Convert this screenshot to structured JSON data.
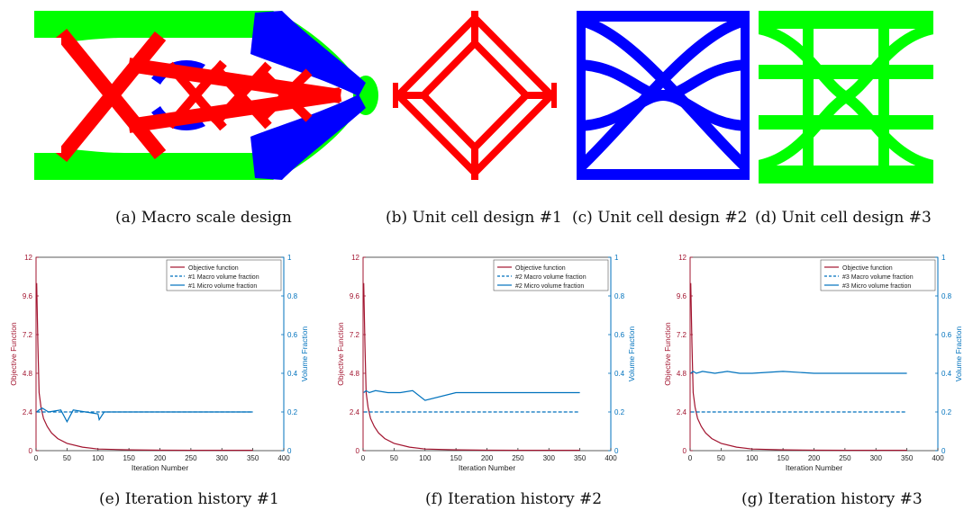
{
  "figure": {
    "captions": {
      "a": "(a) Macro scale design",
      "b": "(b) Unit cell design #1",
      "c": "(c) Unit cell design #2",
      "d": "(d) Unit cell design #3",
      "e": "(e) Iteration history #1",
      "f": "(f) Iteration history #2",
      "g": "(g) Iteration history #3"
    },
    "colors": {
      "red": "#ff0000",
      "blue": "#0000ff",
      "green": "#00ff00",
      "objective": "#a2142f",
      "volume": "#0072bd"
    }
  },
  "chart_data": [
    {
      "type": "line",
      "xlabel": "Iteration Number",
      "ylabel": "Objective Function",
      "y2label": "Volume Fraction",
      "xlim": [
        0,
        400
      ],
      "ylim": [
        0,
        12
      ],
      "y2lim": [
        0,
        1
      ],
      "xticks": [
        "0",
        "50",
        "100",
        "150",
        "200",
        "250",
        "300",
        "350",
        "400"
      ],
      "yticks": [
        "0",
        "2.4",
        "4.8",
        "7.2",
        "9.6",
        "12"
      ],
      "y2ticks": [
        "0",
        "0.2",
        "0.4",
        "0.6",
        "0.8",
        "1"
      ],
      "legend_position": "top-right",
      "series": [
        {
          "name": "Objective function",
          "axis": "left",
          "style": "solid",
          "x": [
            1,
            3,
            5,
            8,
            12,
            18,
            25,
            35,
            50,
            75,
            100,
            150,
            200,
            250,
            300,
            350
          ],
          "values": [
            10.4,
            6.5,
            3.6,
            2.7,
            2.0,
            1.5,
            1.1,
            0.75,
            0.45,
            0.22,
            0.1,
            0.05,
            0.03,
            0.02,
            0.02,
            0.02
          ]
        },
        {
          "name": "#1 Macro volume fraction",
          "axis": "right",
          "style": "dashed",
          "x": [
            1,
            350
          ],
          "values": [
            0.2,
            0.2
          ]
        },
        {
          "name": "#1 Micro volume fraction",
          "axis": "right",
          "style": "solid",
          "x": [
            1,
            5,
            10,
            20,
            40,
            50,
            60,
            80,
            100,
            102,
            110,
            150,
            200,
            250,
            300,
            350
          ],
          "values": [
            0.2,
            0.21,
            0.22,
            0.2,
            0.21,
            0.15,
            0.21,
            0.2,
            0.19,
            0.16,
            0.2,
            0.2,
            0.2,
            0.2,
            0.2,
            0.2
          ]
        }
      ]
    },
    {
      "type": "line",
      "xlabel": "Iteration Number",
      "ylabel": "Objective Function",
      "y2label": "Volume Fraction",
      "xlim": [
        0,
        400
      ],
      "ylim": [
        0,
        12
      ],
      "y2lim": [
        0,
        1
      ],
      "xticks": [
        "0",
        "50",
        "100",
        "150",
        "200",
        "250",
        "300",
        "350",
        "400"
      ],
      "yticks": [
        "0",
        "2.4",
        "4.8",
        "7.2",
        "9.6",
        "12"
      ],
      "y2ticks": [
        "0",
        "0.2",
        "0.4",
        "0.6",
        "0.8",
        "1"
      ],
      "legend_position": "top-right",
      "series": [
        {
          "name": "Objective function",
          "axis": "left",
          "style": "solid",
          "x": [
            1,
            3,
            5,
            8,
            12,
            18,
            25,
            35,
            50,
            75,
            100,
            150,
            200,
            250,
            300,
            350
          ],
          "values": [
            10.4,
            6.5,
            3.6,
            2.7,
            2.0,
            1.5,
            1.1,
            0.75,
            0.45,
            0.22,
            0.1,
            0.05,
            0.03,
            0.02,
            0.02,
            0.02
          ]
        },
        {
          "name": "#2 Macro volume fraction",
          "axis": "right",
          "style": "dashed",
          "x": [
            1,
            350
          ],
          "values": [
            0.2,
            0.2
          ]
        },
        {
          "name": "#2 Micro volume fraction",
          "axis": "right",
          "style": "solid",
          "x": [
            1,
            5,
            10,
            20,
            40,
            60,
            80,
            100,
            150,
            200,
            250,
            300,
            350
          ],
          "values": [
            0.3,
            0.31,
            0.3,
            0.31,
            0.3,
            0.3,
            0.31,
            0.26,
            0.3,
            0.3,
            0.3,
            0.3,
            0.3
          ]
        }
      ]
    },
    {
      "type": "line",
      "xlabel": "Iteration Number",
      "ylabel": "Objective Function",
      "y2label": "Volume Fraction",
      "xlim": [
        0,
        400
      ],
      "ylim": [
        0,
        12
      ],
      "y2lim": [
        0,
        1
      ],
      "xticks": [
        "0",
        "50",
        "100",
        "150",
        "200",
        "250",
        "300",
        "350",
        "400"
      ],
      "yticks": [
        "0",
        "2.4",
        "4.8",
        "7.2",
        "9.6",
        "12"
      ],
      "y2ticks": [
        "0",
        "0.2",
        "0.4",
        "0.6",
        "0.8",
        "1"
      ],
      "legend_position": "top-right",
      "series": [
        {
          "name": "Objective function",
          "axis": "left",
          "style": "solid",
          "x": [
            1,
            3,
            5,
            8,
            12,
            18,
            25,
            35,
            50,
            75,
            100,
            150,
            200,
            250,
            300,
            350
          ],
          "values": [
            10.4,
            6.5,
            3.6,
            2.7,
            2.0,
            1.5,
            1.1,
            0.75,
            0.45,
            0.22,
            0.1,
            0.05,
            0.03,
            0.02,
            0.02,
            0.02
          ]
        },
        {
          "name": "#3 Macro volume fraction",
          "axis": "right",
          "style": "dashed",
          "x": [
            1,
            350
          ],
          "values": [
            0.2,
            0.2
          ]
        },
        {
          "name": "#3 Micro volume fraction",
          "axis": "right",
          "style": "solid",
          "x": [
            1,
            5,
            10,
            20,
            40,
            60,
            80,
            100,
            150,
            200,
            250,
            300,
            350
          ],
          "values": [
            0.4,
            0.41,
            0.4,
            0.41,
            0.4,
            0.41,
            0.4,
            0.4,
            0.41,
            0.4,
            0.4,
            0.4,
            0.4
          ]
        }
      ]
    }
  ]
}
